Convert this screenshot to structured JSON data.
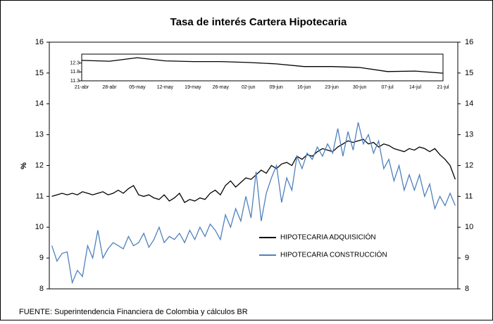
{
  "chart_data": [
    {
      "type": "line",
      "title": "Tasa de interés Cartera Hipotecaria",
      "y_label": "%",
      "source": "FUENTE:   Superintendencia Financiera de Colombia  y  cálculos BR",
      "categories": [
        null,
        null,
        null,
        null,
        null,
        null,
        null,
        null,
        null,
        null,
        null,
        null,
        null,
        null,
        null,
        null,
        null,
        null,
        null,
        null,
        null,
        null,
        null,
        null,
        null,
        null,
        null,
        null,
        null,
        null,
        null,
        null,
        null,
        null,
        null,
        null,
        null,
        null,
        null,
        null,
        null,
        null,
        null,
        null,
        null,
        null,
        null,
        null,
        null,
        null,
        null,
        null,
        null,
        null,
        null,
        null,
        null,
        null,
        null,
        null,
        null,
        null,
        null,
        null,
        null,
        null,
        null,
        null,
        null,
        null,
        null,
        null,
        null,
        null,
        null,
        null,
        null,
        null,
        null,
        null
      ],
      "ylim": [
        8,
        16
      ],
      "yticks": [
        8,
        9,
        10,
        11,
        12,
        13,
        14,
        15,
        16
      ],
      "y2lim": [
        8,
        16
      ],
      "y2ticks": [
        8,
        9,
        10,
        11,
        12,
        13,
        14,
        15,
        16
      ],
      "series": [
        {
          "name": "HIPOTECARIA ADQUISICIÓN",
          "color": "#000000",
          "values": [
            11.0,
            11.05,
            11.1,
            11.05,
            11.1,
            11.05,
            11.15,
            11.1,
            11.05,
            11.1,
            11.15,
            11.05,
            11.1,
            11.2,
            11.1,
            11.25,
            11.35,
            11.05,
            11.0,
            11.05,
            10.95,
            10.9,
            11.05,
            10.85,
            10.95,
            11.1,
            10.8,
            10.9,
            10.85,
            10.95,
            10.9,
            11.1,
            11.2,
            11.05,
            11.35,
            11.5,
            11.3,
            11.45,
            11.6,
            11.55,
            11.7,
            11.85,
            11.75,
            12.0,
            11.9,
            12.05,
            12.1,
            12.0,
            12.3,
            12.2,
            12.35,
            12.3,
            12.45,
            12.55,
            12.5,
            12.45,
            12.6,
            12.7,
            12.8,
            12.75,
            12.8,
            12.85,
            12.7,
            12.75,
            12.6,
            12.7,
            12.65,
            12.55,
            12.5,
            12.45,
            12.55,
            12.5,
            12.6,
            12.55,
            12.45,
            12.55,
            12.35,
            12.2,
            12.0,
            11.55
          ]
        },
        {
          "name": "HIPOTECARIA CONSTRUCCIÓN",
          "color": "#4f81bd",
          "values": [
            9.4,
            8.9,
            9.15,
            9.2,
            8.2,
            8.6,
            8.4,
            9.4,
            9.0,
            9.9,
            9.0,
            9.3,
            9.5,
            9.4,
            9.3,
            9.7,
            9.4,
            9.5,
            9.8,
            9.35,
            9.6,
            10.0,
            9.5,
            9.7,
            9.6,
            9.8,
            9.5,
            9.9,
            9.6,
            10.0,
            9.7,
            10.1,
            9.9,
            9.6,
            10.4,
            10.0,
            10.6,
            10.2,
            11.0,
            10.3,
            11.8,
            10.2,
            11.1,
            11.6,
            12.0,
            10.8,
            11.6,
            11.2,
            12.3,
            11.9,
            12.4,
            12.2,
            12.6,
            12.3,
            12.7,
            12.4,
            13.2,
            12.3,
            13.1,
            12.5,
            13.4,
            12.7,
            13.0,
            12.4,
            12.8,
            11.9,
            12.2,
            11.5,
            12.0,
            11.2,
            11.7,
            11.2,
            11.7,
            11.0,
            11.4,
            10.6,
            11.0,
            10.7,
            11.1,
            10.7
          ]
        }
      ]
    },
    {
      "type": "line",
      "categories": [
        "21-abr",
        "28-abr",
        "05-may",
        "12-may",
        "19-may",
        "26-may",
        "02-jun",
        "09-jun",
        "16-jun",
        "23-jun",
        "30-jun",
        "07-jul",
        "14-jul",
        "21-jul"
      ],
      "ylim": [
        11.3,
        12.8
      ],
      "yticks": [
        11.3,
        11.8,
        12.3
      ],
      "color": "#000000",
      "values": [
        12.45,
        12.4,
        12.6,
        12.42,
        12.38,
        12.38,
        12.33,
        12.25,
        12.1,
        12.1,
        12.05,
        11.82,
        11.85,
        11.73
      ]
    }
  ]
}
